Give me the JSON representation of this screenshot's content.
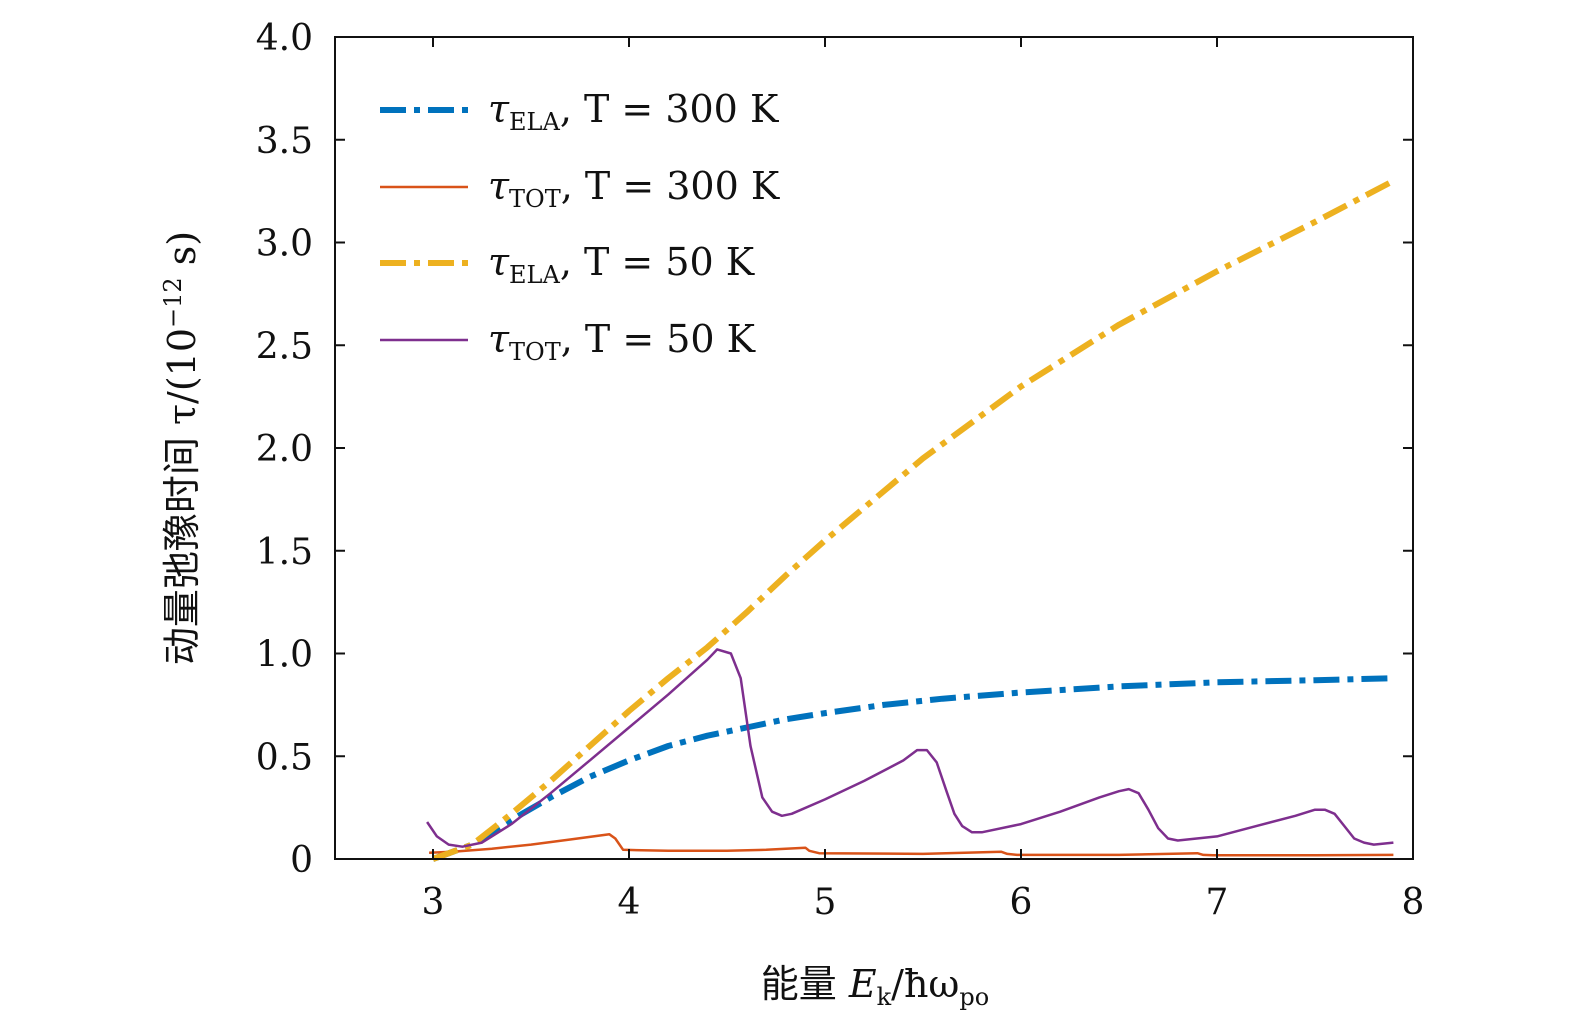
{
  "chart_data": {
    "type": "line",
    "title": "",
    "xlabel": {
      "prefix": "能量 ",
      "var": "E",
      "var_sub": "k",
      "slash": "/ħω",
      "slash_sub": "po"
    },
    "ylabel": {
      "text": "动量弛豫时间 τ/(10",
      "sup": "−12",
      "tail": " s)"
    },
    "xlim": [
      2.5,
      8
    ],
    "ylim": [
      0,
      4.0
    ],
    "xticks": [
      3,
      4,
      5,
      6,
      7,
      8
    ],
    "xtick_labels": [
      "3",
      "4",
      "5",
      "6",
      "7",
      "8"
    ],
    "yticks": [
      0,
      0.5,
      1.0,
      1.5,
      2.0,
      2.5,
      3.0,
      3.5,
      4.0
    ],
    "ytick_labels": [
      "0",
      "0.5",
      "1.0",
      "1.5",
      "2.0",
      "2.5",
      "3.0",
      "3.5",
      "4.0"
    ],
    "legend_position": "top-left",
    "series": [
      {
        "name": "τELA, T = 300 K",
        "legend": {
          "sym": "τ",
          "sub": "ELA",
          "rest": ", T = 300 K"
        },
        "color": "#0072BD",
        "style": "dashdot",
        "x": [
          3.0,
          3.2,
          3.4,
          3.6,
          3.8,
          4.0,
          4.2,
          4.4,
          4.6,
          4.8,
          5.0,
          5.3,
          5.6,
          6.0,
          6.5,
          7.0,
          7.5,
          7.9
        ],
        "y": [
          0.0,
          0.07,
          0.19,
          0.3,
          0.4,
          0.48,
          0.55,
          0.6,
          0.64,
          0.68,
          0.71,
          0.75,
          0.78,
          0.81,
          0.84,
          0.86,
          0.87,
          0.88
        ]
      },
      {
        "name": "τTOT, T = 300 K",
        "legend": {
          "sym": "τ",
          "sub": "TOT",
          "rest": ", T = 300 K"
        },
        "color": "#D95319",
        "style": "solid",
        "x": [
          2.98,
          3.1,
          3.3,
          3.5,
          3.7,
          3.9,
          3.93,
          3.97,
          4.2,
          4.5,
          4.7,
          4.9,
          4.92,
          4.97,
          5.5,
          5.9,
          5.93,
          5.98,
          6.5,
          6.9,
          6.93,
          6.98,
          7.5,
          7.9
        ],
        "y": [
          0.03,
          0.035,
          0.05,
          0.07,
          0.095,
          0.12,
          0.1,
          0.045,
          0.04,
          0.04,
          0.045,
          0.055,
          0.04,
          0.028,
          0.025,
          0.035,
          0.025,
          0.02,
          0.02,
          0.028,
          0.02,
          0.018,
          0.018,
          0.02
        ]
      },
      {
        "name": "τELA, T = 50 K",
        "legend": {
          "sym": "τ",
          "sub": "ELA",
          "rest": ", T = 50 K"
        },
        "color": "#EDB120",
        "style": "dashdot",
        "x": [
          3.0,
          3.2,
          3.4,
          3.6,
          3.8,
          4.0,
          4.2,
          4.4,
          4.6,
          4.8,
          5.0,
          5.5,
          6.0,
          6.5,
          7.0,
          7.5,
          7.9
        ],
        "y": [
          0.0,
          0.07,
          0.22,
          0.38,
          0.55,
          0.72,
          0.88,
          1.03,
          1.2,
          1.38,
          1.55,
          1.95,
          2.3,
          2.6,
          2.86,
          3.1,
          3.3
        ]
      },
      {
        "name": "τTOT, T = 50 K",
        "legend": {
          "sym": "τ",
          "sub": "TOT",
          "rest": ", T = 50 K"
        },
        "color": "#7E2F8E",
        "style": "solid",
        "x": [
          2.97,
          3.02,
          3.08,
          3.15,
          3.25,
          3.4,
          3.6,
          3.8,
          4.0,
          4.2,
          4.4,
          4.45,
          4.52,
          4.57,
          4.62,
          4.68,
          4.73,
          4.78,
          4.83,
          5.0,
          5.2,
          5.4,
          5.47,
          5.52,
          5.57,
          5.62,
          5.66,
          5.7,
          5.75,
          5.8,
          6.0,
          6.2,
          6.4,
          6.5,
          6.55,
          6.6,
          6.65,
          6.7,
          6.75,
          6.8,
          7.0,
          7.2,
          7.4,
          7.5,
          7.55,
          7.6,
          7.65,
          7.7,
          7.75,
          7.8,
          7.9
        ],
        "y": [
          0.18,
          0.11,
          0.07,
          0.06,
          0.08,
          0.17,
          0.32,
          0.48,
          0.64,
          0.8,
          0.97,
          1.02,
          1.0,
          0.88,
          0.55,
          0.3,
          0.23,
          0.21,
          0.22,
          0.29,
          0.38,
          0.48,
          0.53,
          0.53,
          0.47,
          0.33,
          0.22,
          0.16,
          0.13,
          0.13,
          0.17,
          0.23,
          0.3,
          0.33,
          0.34,
          0.32,
          0.24,
          0.15,
          0.1,
          0.09,
          0.11,
          0.16,
          0.21,
          0.24,
          0.24,
          0.22,
          0.16,
          0.1,
          0.08,
          0.07,
          0.08
        ]
      }
    ]
  }
}
